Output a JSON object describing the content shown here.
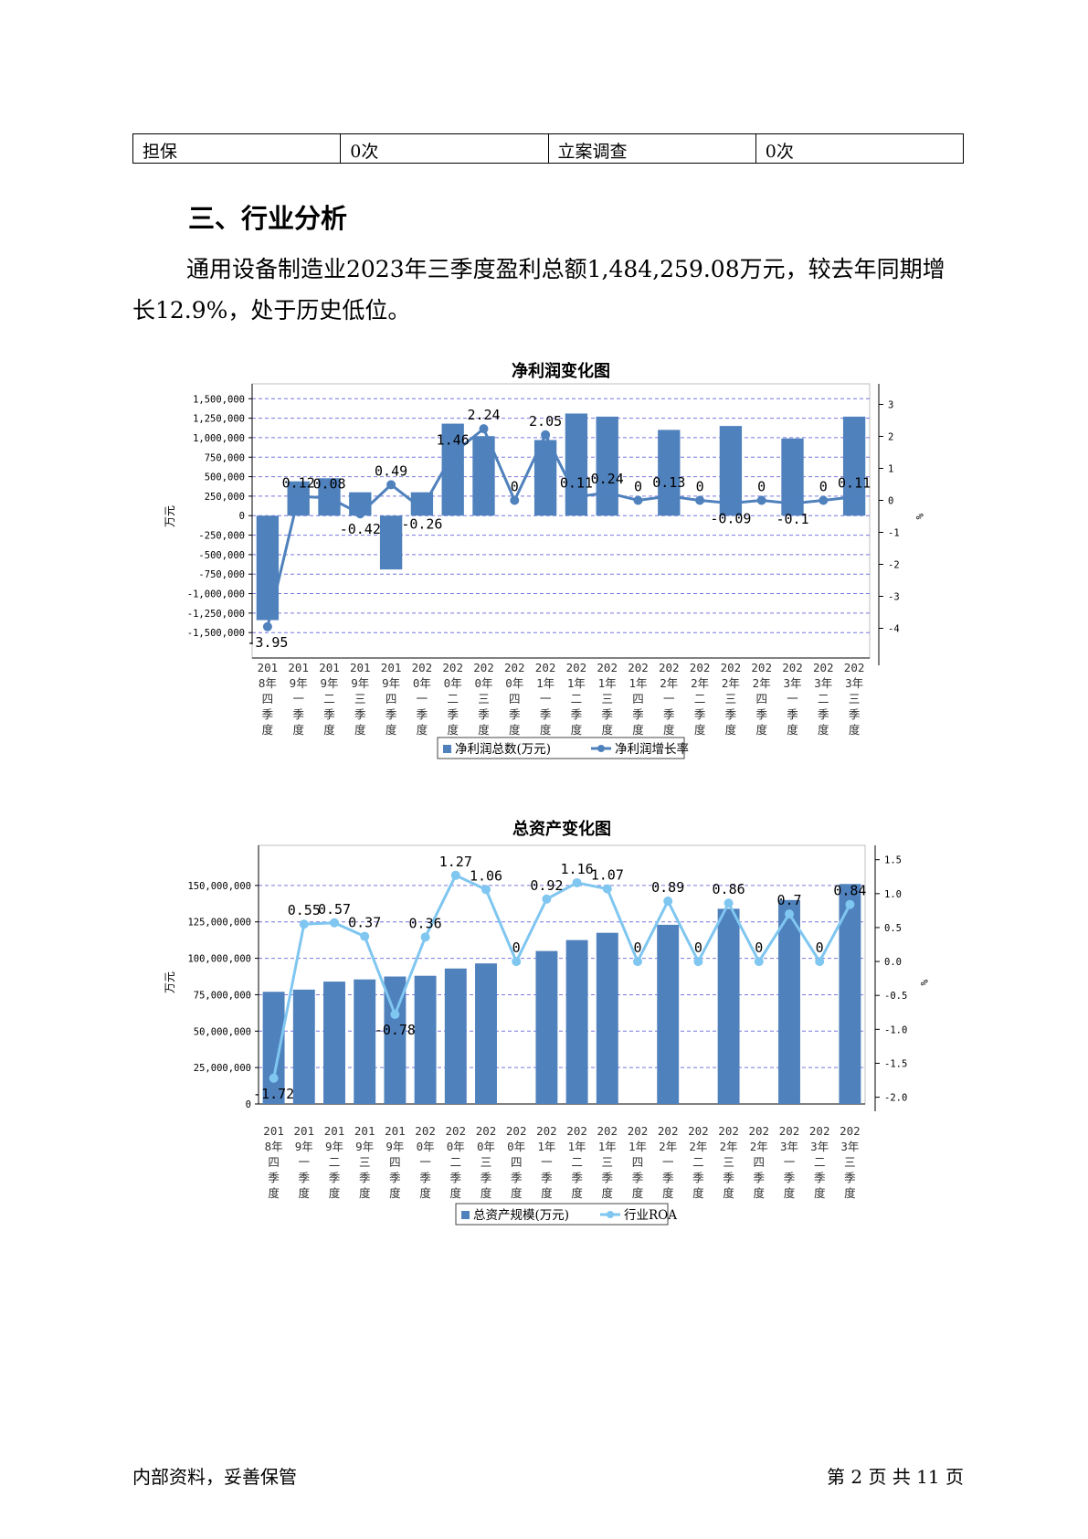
{
  "table": {
    "cells": [
      "担保",
      "0次",
      "立案调查",
      "0次"
    ]
  },
  "section": {
    "title": "三、行业分析",
    "paragraph": "通用设备制造业2023年三季度盈利总额1,484,259.08万元，较去年同期增长12.9%，处于历史低位。"
  },
  "chart_data": [
    {
      "type": "bar",
      "title": "净利润变化图",
      "categories": [
        "2018年四季度",
        "2019年一季度",
        "2019年二季度",
        "2019年三季度",
        "2019年四季度",
        "2020年一季度",
        "2020年二季度",
        "2020年三季度",
        "2020年四季度",
        "2021年一季度",
        "2021年二季度",
        "2021年三季度",
        "2021年四季度",
        "2022年一季度",
        "2022年二季度",
        "2022年三季度",
        "2022年四季度",
        "2023年一季度",
        "2023年二季度",
        "2023年三季度"
      ],
      "series": [
        {
          "name": "净利润总数(万元)",
          "type": "bar",
          "axis": "left",
          "color": "#4f81bd",
          "values": [
            -1340000,
            440000,
            480000,
            300000,
            -690000,
            300000,
            1180000,
            1020000,
            0,
            970000,
            1310000,
            1270000,
            0,
            1100000,
            0,
            1150000,
            0,
            990000,
            0,
            1270000
          ]
        },
        {
          "name": "净利润增长率",
          "type": "line",
          "axis": "right",
          "color": "#4f81bd",
          "values": [
            -3.95,
            0.12,
            0.08,
            -0.42,
            0.49,
            -0.26,
            1.46,
            2.24,
            0,
            2.05,
            0.11,
            0.24,
            0,
            0.13,
            0,
            -0.09,
            0,
            -0.1,
            0,
            0.11
          ]
        }
      ],
      "ylabel": "万元",
      "y2label": "%",
      "yticks": [
        "1,500,000",
        "1,250,000",
        "1,000,000",
        "750,000",
        "500,000",
        "250,000",
        "0",
        "-250,000",
        "-500,000",
        "-750,000",
        "-1,000,000",
        "-1,250,000",
        "-1,500,000"
      ],
      "y2ticks": [
        "3",
        "2",
        "1",
        "0",
        "-1",
        "-2",
        "-3",
        "-4"
      ],
      "ylim": [
        -1650000,
        1550000
      ],
      "y2lim": [
        -4.5,
        3.3
      ],
      "grid": true,
      "legend": "bottom"
    },
    {
      "type": "bar",
      "title": "总资产变化图",
      "categories": [
        "2018年四季度",
        "2019年一季度",
        "2019年二季度",
        "2019年三季度",
        "2019年四季度",
        "2020年一季度",
        "2020年二季度",
        "2020年三季度",
        "2020年四季度",
        "2021年一季度",
        "2021年二季度",
        "2021年三季度",
        "2021年四季度",
        "2022年一季度",
        "2022年二季度",
        "2022年三季度",
        "2022年四季度",
        "2023年一季度",
        "2023年二季度",
        "2023年三季度"
      ],
      "series": [
        {
          "name": "总资产规模(万元)",
          "type": "bar",
          "axis": "left",
          "color": "#4f81bd",
          "values": [
            77000000,
            78500000,
            84000000,
            85500000,
            87500000,
            88000000,
            93000000,
            96500000,
            0,
            105000000,
            112500000,
            117500000,
            0,
            123000000,
            0,
            134000000,
            0,
            140000000,
            0,
            151000000
          ]
        },
        {
          "name": "行业ROA",
          "type": "line",
          "axis": "right",
          "color": "#7fc6f0",
          "values": [
            -1.72,
            0.55,
            0.57,
            0.37,
            -0.78,
            0.36,
            1.27,
            1.06,
            0,
            0.92,
            1.16,
            1.07,
            0,
            0.89,
            0,
            0.86,
            0,
            0.7,
            0,
            0.84
          ]
        }
      ],
      "ylabel": "万元",
      "y2label": "%",
      "yticks": [
        "150,000,000",
        "125,000,000",
        "100,000,000",
        "75,000,000",
        "50,000,000",
        "25,000,000",
        "0"
      ],
      "y2ticks": [
        "1.5",
        "1.0",
        "0.5",
        "0.0",
        "-0.5",
        "-1.0",
        "-1.5",
        "-2.0"
      ],
      "ylim": [
        0,
        170000000
      ],
      "y2lim": [
        -2.1,
        1.55
      ],
      "grid": true,
      "legend": "bottom"
    }
  ],
  "footer": {
    "left": "内部资料，妥善保管",
    "right": "第 2 页   共 11 页"
  }
}
